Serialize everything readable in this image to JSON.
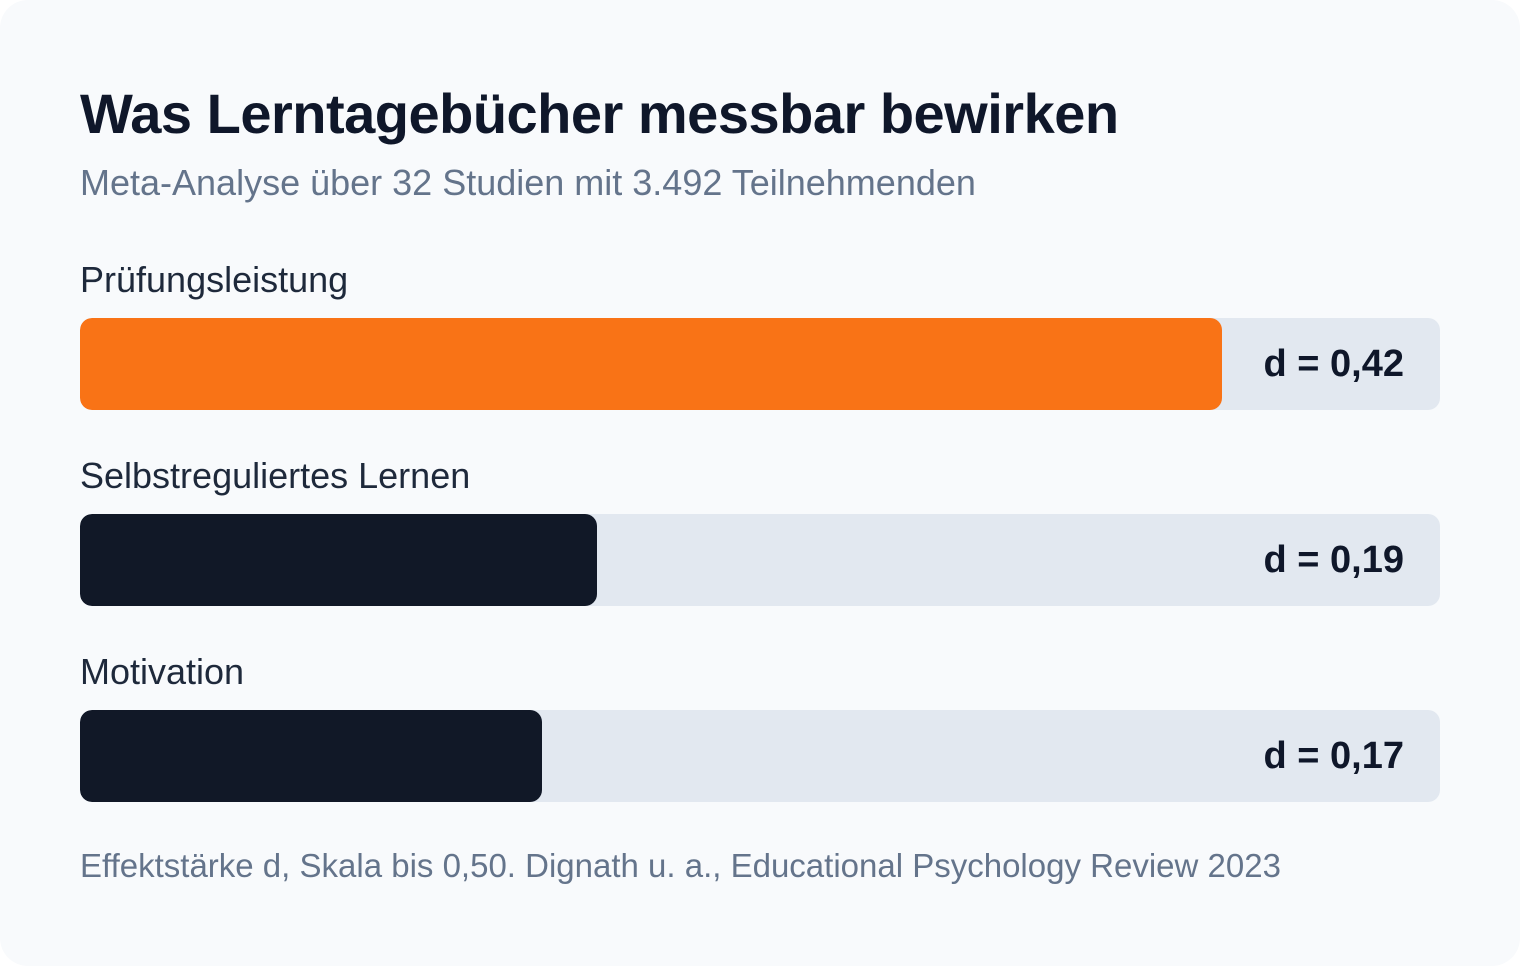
{
  "title": "Was Lerntagebücher messbar bewirken",
  "subtitle": "Meta-Analyse über 32 Studien mit 3.492 Teilnehmenden",
  "footnote": "Effektstärke d, Skala bis 0,50. Dignath u. a., Educational Psychology Review 2023",
  "colors": {
    "highlight": "#f97316",
    "default": "#111827",
    "track": "#e2e8f0"
  },
  "chart_data": {
    "type": "bar",
    "orientation": "horizontal",
    "title": "Was Lerntagebücher messbar bewirken",
    "subtitle": "Meta-Analyse über 32 Studien mit 3.492 Teilnehmenden",
    "xlim": [
      0,
      0.5
    ],
    "categories": [
      "Prüfungsleistung",
      "Selbstreguliertes Lernen",
      "Motivation"
    ],
    "values": [
      0.42,
      0.19,
      0.17
    ],
    "value_labels": [
      "d = 0,42",
      "d = 0,19",
      "d = 0,17"
    ],
    "highlighted": [
      true,
      false,
      false
    ]
  }
}
